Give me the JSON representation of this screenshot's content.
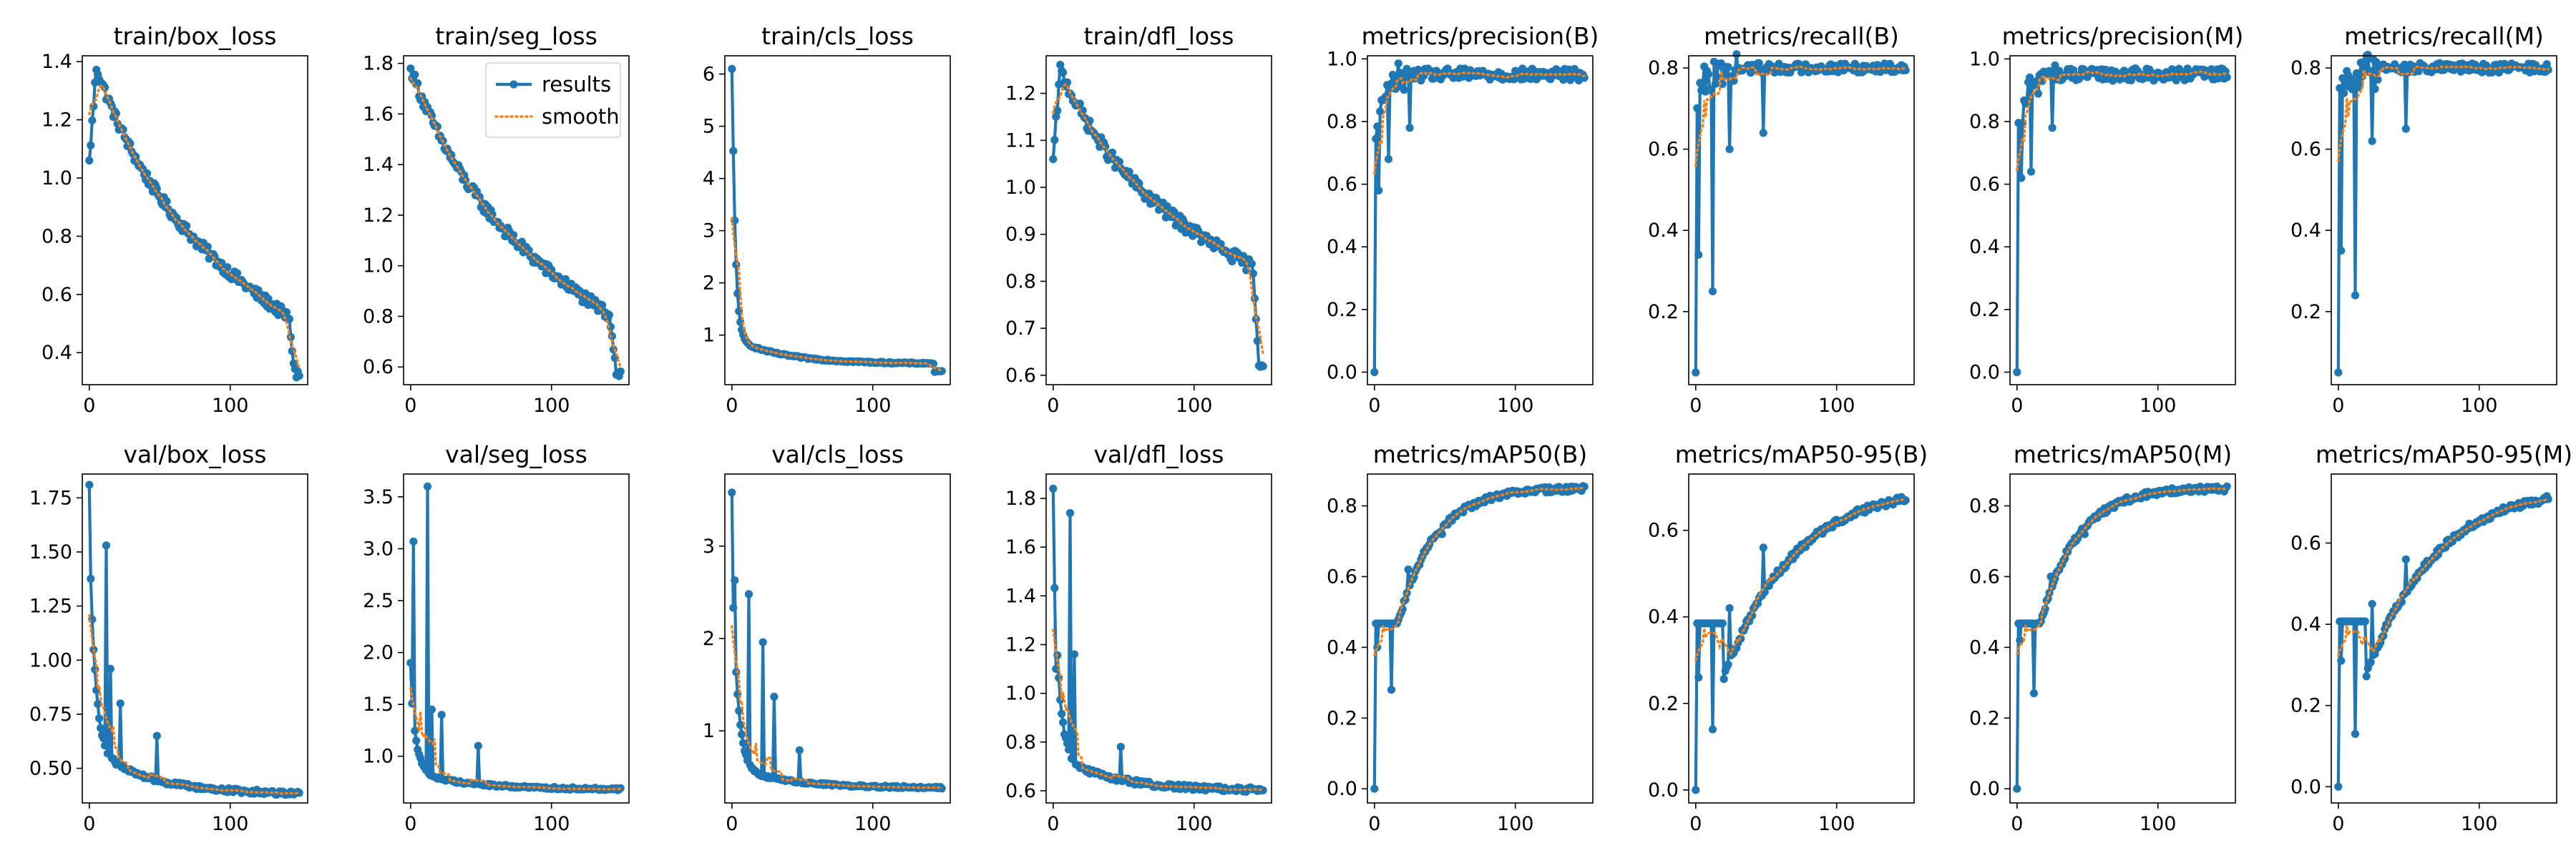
{
  "figure": {
    "title": ""
  },
  "colors": {
    "results": "#1f77b4",
    "smooth": "#ff7f0e"
  },
  "legend": {
    "results_label": "results",
    "smooth_label": "smooth",
    "placement": "top-right",
    "panel": 1
  },
  "chart_data": [
    {
      "type": "line",
      "title": "train/box_loss",
      "xlim": [
        -5,
        155
      ],
      "ylim": [
        0.29,
        1.42
      ],
      "xticks": [
        0,
        100
      ],
      "yticks": [
        0.4,
        0.6,
        0.8,
        1.0,
        1.2,
        1.4
      ],
      "ytick_labels": [
        "0.4",
        "0.6",
        "0.8",
        "1.0",
        "1.2",
        "1.4"
      ],
      "profile": {
        "kind": "decay",
        "start": 1.06,
        "peak": 1.38,
        "peak_x": 5,
        "plateau": 0.5,
        "final": 0.33,
        "drop_at": 142,
        "noise": 0.018
      },
      "series": [
        {
          "name": "results"
        },
        {
          "name": "smooth"
        }
      ]
    },
    {
      "type": "line",
      "title": "train/seg_loss",
      "xlim": [
        -5,
        155
      ],
      "ylim": [
        0.53,
        1.83
      ],
      "xticks": [
        0,
        100
      ],
      "yticks": [
        0.6,
        0.8,
        1.0,
        1.2,
        1.4,
        1.6,
        1.8
      ],
      "ytick_labels": [
        "0.6",
        "0.8",
        "1.0",
        "1.2",
        "1.4",
        "1.6",
        "1.8"
      ],
      "profile": {
        "kind": "decay",
        "start": 1.78,
        "peak": 1.78,
        "peak_x": 0,
        "plateau": 0.78,
        "final": 0.58,
        "drop_at": 142,
        "noise": 0.022
      },
      "series": [
        {
          "name": "results"
        },
        {
          "name": "smooth"
        }
      ]
    },
    {
      "type": "line",
      "title": "train/cls_loss",
      "xlim": [
        -5,
        155
      ],
      "ylim": [
        0.05,
        6.35
      ],
      "xticks": [
        0,
        100
      ],
      "yticks": [
        1,
        2,
        3,
        4,
        5,
        6
      ],
      "ytick_labels": [
        "1",
        "2",
        "3",
        "4",
        "5",
        "6"
      ],
      "profile": {
        "kind": "fastdecay",
        "start": 6.1,
        "mid": 1.0,
        "plateau": 0.45,
        "final": 0.3,
        "drop_at": 144,
        "noise": 0.015
      },
      "series": [
        {
          "name": "results"
        },
        {
          "name": "smooth"
        }
      ]
    },
    {
      "type": "line",
      "title": "train/dfl_loss",
      "xlim": [
        -5,
        155
      ],
      "ylim": [
        0.58,
        1.28
      ],
      "xticks": [
        0,
        100
      ],
      "yticks": [
        0.6,
        0.7,
        0.8,
        0.9,
        1.0,
        1.1,
        1.2
      ],
      "ytick_labels": [
        "0.6",
        "0.7",
        "0.8",
        "0.9",
        "1.0",
        "1.1",
        "1.2"
      ],
      "profile": {
        "kind": "decay",
        "start": 1.06,
        "peak": 1.25,
        "peak_x": 5,
        "plateau": 0.82,
        "final": 0.63,
        "drop_at": 142,
        "noise": 0.013
      },
      "series": [
        {
          "name": "results"
        },
        {
          "name": "smooth"
        }
      ]
    },
    {
      "type": "line",
      "title": "metrics/precision(B)",
      "xlim": [
        -5,
        155
      ],
      "ylim": [
        -0.04,
        1.01
      ],
      "xticks": [
        0,
        100
      ],
      "yticks": [
        0.0,
        0.2,
        0.4,
        0.6,
        0.8,
        1.0
      ],
      "ytick_labels": [
        "0.0",
        "0.2",
        "0.4",
        "0.6",
        "0.8",
        "1.0"
      ],
      "profile": {
        "kind": "rise",
        "start": 0.0,
        "level": 0.95,
        "noise": 0.02,
        "spikes": [
          [
            3,
            0.58
          ],
          [
            10,
            0.68
          ],
          [
            25,
            0.78
          ]
        ]
      },
      "series": [
        {
          "name": "results"
        },
        {
          "name": "smooth"
        }
      ]
    },
    {
      "type": "line",
      "title": "metrics/recall(B)",
      "xlim": [
        -5,
        155
      ],
      "ylim": [
        0.02,
        0.83
      ],
      "xticks": [
        0,
        100
      ],
      "yticks": [
        0.2,
        0.4,
        0.6,
        0.8
      ],
      "ytick_labels": [
        "0.2",
        "0.4",
        "0.6",
        "0.8"
      ],
      "profile": {
        "kind": "rise",
        "start": 0.05,
        "level": 0.8,
        "noise": 0.012,
        "spikes": [
          [
            2,
            0.34
          ],
          [
            12,
            0.25
          ],
          [
            24,
            0.6
          ],
          [
            48,
            0.64
          ]
        ]
      },
      "series": [
        {
          "name": "results"
        },
        {
          "name": "smooth"
        }
      ]
    },
    {
      "type": "line",
      "title": "metrics/precision(M)",
      "xlim": [
        -5,
        155
      ],
      "ylim": [
        -0.04,
        1.01
      ],
      "xticks": [
        0,
        100
      ],
      "yticks": [
        0.0,
        0.2,
        0.4,
        0.6,
        0.8,
        1.0
      ],
      "ytick_labels": [
        "0.0",
        "0.2",
        "0.4",
        "0.6",
        "0.8",
        "1.0"
      ],
      "profile": {
        "kind": "rise",
        "start": 0.0,
        "level": 0.95,
        "noise": 0.02,
        "spikes": [
          [
            3,
            0.62
          ],
          [
            10,
            0.64
          ],
          [
            25,
            0.78
          ]
        ]
      },
      "series": [
        {
          "name": "results"
        },
        {
          "name": "smooth"
        }
      ]
    },
    {
      "type": "line",
      "title": "metrics/recall(M)",
      "xlim": [
        -5,
        155
      ],
      "ylim": [
        0.02,
        0.83
      ],
      "xticks": [
        0,
        100
      ],
      "yticks": [
        0.2,
        0.4,
        0.6,
        0.8
      ],
      "ytick_labels": [
        "0.2",
        "0.4",
        "0.6",
        "0.8"
      ],
      "profile": {
        "kind": "rise",
        "start": 0.05,
        "level": 0.8,
        "noise": 0.012,
        "spikes": [
          [
            2,
            0.35
          ],
          [
            12,
            0.24
          ],
          [
            24,
            0.62
          ],
          [
            48,
            0.65
          ]
        ]
      },
      "series": [
        {
          "name": "results"
        },
        {
          "name": "smooth"
        }
      ]
    },
    {
      "type": "line",
      "title": "val/box_loss",
      "xlim": [
        -5,
        155
      ],
      "ylim": [
        0.34,
        1.86
      ],
      "xticks": [
        0,
        100
      ],
      "yticks": [
        0.5,
        0.75,
        1.0,
        1.25,
        1.5,
        1.75
      ],
      "ytick_labels": [
        "0.50",
        "0.75",
        "1.00",
        "1.25",
        "1.50",
        "1.75"
      ],
      "profile": {
        "kind": "decay2",
        "start": 1.81,
        "mid": 0.6,
        "final": 0.38,
        "noise": 0.01,
        "spikes": [
          [
            12,
            1.53
          ],
          [
            15,
            0.96
          ],
          [
            22,
            0.8
          ],
          [
            48,
            0.65
          ]
        ]
      },
      "series": [
        {
          "name": "results"
        },
        {
          "name": "smooth"
        }
      ]
    },
    {
      "type": "line",
      "title": "val/seg_loss",
      "xlim": [
        -5,
        155
      ],
      "ylim": [
        0.55,
        3.72
      ],
      "xticks": [
        0,
        100
      ],
      "yticks": [
        1.0,
        1.5,
        2.0,
        2.5,
        3.0,
        3.5
      ],
      "ytick_labels": [
        "1.0",
        "1.5",
        "2.0",
        "2.5",
        "3.0",
        "3.5"
      ],
      "profile": {
        "kind": "decay2",
        "start": 1.9,
        "mid": 0.85,
        "final": 0.68,
        "noise": 0.012,
        "spikes": [
          [
            2,
            3.07
          ],
          [
            12,
            3.6
          ],
          [
            15,
            1.45
          ],
          [
            22,
            1.4
          ],
          [
            48,
            1.1
          ]
        ]
      },
      "series": [
        {
          "name": "results"
        },
        {
          "name": "smooth"
        }
      ]
    },
    {
      "type": "line",
      "title": "val/cls_loss",
      "xlim": [
        -5,
        155
      ],
      "ylim": [
        0.22,
        3.78
      ],
      "xticks": [
        0,
        100
      ],
      "yticks": [
        1,
        2,
        3
      ],
      "ytick_labels": [
        "1",
        "2",
        "3"
      ],
      "profile": {
        "kind": "decay2",
        "start": 3.58,
        "mid": 0.6,
        "final": 0.38,
        "noise": 0.012,
        "spikes": [
          [
            2,
            2.63
          ],
          [
            12,
            2.48
          ],
          [
            22,
            1.96
          ],
          [
            30,
            1.37
          ],
          [
            48,
            0.79
          ]
        ]
      },
      "series": [
        {
          "name": "results"
        },
        {
          "name": "smooth"
        }
      ]
    },
    {
      "type": "line",
      "title": "val/dfl_loss",
      "xlim": [
        -5,
        155
      ],
      "ylim": [
        0.55,
        1.9
      ],
      "xticks": [
        0,
        100
      ],
      "yticks": [
        0.6,
        0.8,
        1.0,
        1.2,
        1.4,
        1.6,
        1.8
      ],
      "ytick_labels": [
        "0.6",
        "0.8",
        "1.0",
        "1.2",
        "1.4",
        "1.6",
        "1.8"
      ],
      "profile": {
        "kind": "decay2",
        "start": 1.84,
        "mid": 0.75,
        "final": 0.6,
        "noise": 0.01,
        "spikes": [
          [
            2,
            1.1
          ],
          [
            12,
            1.74
          ],
          [
            15,
            1.16
          ],
          [
            48,
            0.78
          ]
        ]
      },
      "series": [
        {
          "name": "results"
        },
        {
          "name": "smooth"
        }
      ]
    },
    {
      "type": "line",
      "title": "metrics/mAP50(B)",
      "xlim": [
        -5,
        155
      ],
      "ylim": [
        -0.04,
        0.89
      ],
      "xticks": [
        0,
        100
      ],
      "yticks": [
        0.0,
        0.2,
        0.4,
        0.6,
        0.8
      ],
      "ytick_labels": [
        "0.0",
        "0.2",
        "0.4",
        "0.6",
        "0.8"
      ],
      "profile": {
        "kind": "saturate",
        "start": 0.0,
        "level": 0.85,
        "rate": 0.12,
        "noise": 0.008,
        "spikes": [
          [
            2,
            0.4
          ],
          [
            12,
            0.28
          ],
          [
            24,
            0.62
          ],
          [
            48,
            0.72
          ]
        ]
      },
      "series": [
        {
          "name": "results"
        },
        {
          "name": "smooth"
        }
      ]
    },
    {
      "type": "line",
      "title": "metrics/mAP50-95(B)",
      "xlim": [
        -5,
        155
      ],
      "ylim": [
        -0.03,
        0.73
      ],
      "xticks": [
        0,
        100
      ],
      "yticks": [
        0.0,
        0.2,
        0.4,
        0.6
      ],
      "ytick_labels": [
        "0.0",
        "0.2",
        "0.4",
        "0.6"
      ],
      "profile": {
        "kind": "saturate",
        "start": 0.0,
        "level": 0.7,
        "rate": 0.06,
        "noise": 0.008,
        "spikes": [
          [
            2,
            0.26
          ],
          [
            12,
            0.14
          ],
          [
            24,
            0.42
          ],
          [
            48,
            0.56
          ]
        ]
      },
      "series": [
        {
          "name": "results"
        },
        {
          "name": "smooth"
        }
      ]
    },
    {
      "type": "line",
      "title": "metrics/mAP50(M)",
      "xlim": [
        -5,
        155
      ],
      "ylim": [
        -0.04,
        0.89
      ],
      "xticks": [
        0,
        100
      ],
      "yticks": [
        0.0,
        0.2,
        0.4,
        0.6,
        0.8
      ],
      "ytick_labels": [
        "0.0",
        "0.2",
        "0.4",
        "0.6",
        "0.8"
      ],
      "profile": {
        "kind": "saturate",
        "start": 0.0,
        "level": 0.85,
        "rate": 0.12,
        "noise": 0.008,
        "spikes": [
          [
            2,
            0.42
          ],
          [
            12,
            0.27
          ],
          [
            24,
            0.6
          ],
          [
            48,
            0.72
          ]
        ]
      },
      "series": [
        {
          "name": "results"
        },
        {
          "name": "smooth"
        }
      ]
    },
    {
      "type": "line",
      "title": "metrics/mAP50-95(M)",
      "xlim": [
        -5,
        155
      ],
      "ylim": [
        -0.04,
        0.77
      ],
      "xticks": [
        0,
        100
      ],
      "yticks": [
        0.0,
        0.2,
        0.4,
        0.6
      ],
      "ytick_labels": [
        "0.0",
        "0.2",
        "0.4",
        "0.6"
      ],
      "profile": {
        "kind": "saturate",
        "start": 0.0,
        "level": 0.74,
        "rate": 0.06,
        "noise": 0.008,
        "spikes": [
          [
            2,
            0.31
          ],
          [
            12,
            0.13
          ],
          [
            24,
            0.45
          ],
          [
            48,
            0.56
          ]
        ]
      },
      "series": [
        {
          "name": "results"
        },
        {
          "name": "smooth"
        }
      ]
    }
  ]
}
